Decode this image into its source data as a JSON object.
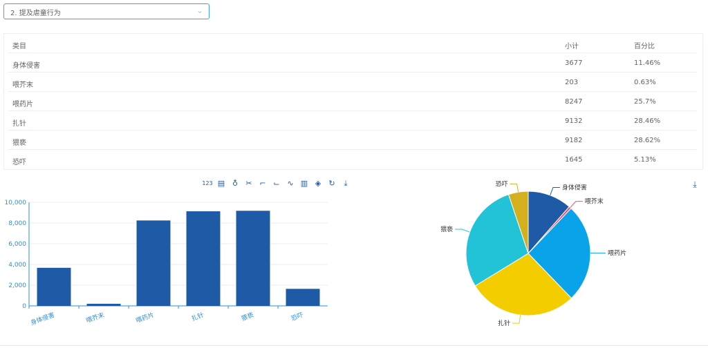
{
  "select": {
    "value": "2. 提及虐童行为",
    "chevron": "⌄"
  },
  "table": {
    "headers": [
      "类目",
      "小计",
      "百分比"
    ],
    "rows": [
      {
        "name": "身体侵害",
        "count": "3677",
        "pct": "11.46%"
      },
      {
        "name": "喂芥末",
        "count": "203",
        "pct": "0.63%"
      },
      {
        "name": "喂药片",
        "count": "8247",
        "pct": "25.7%"
      },
      {
        "name": "扎针",
        "count": "9132",
        "pct": "28.46%"
      },
      {
        "name": "猥亵",
        "count": "9182",
        "pct": "28.62%"
      },
      {
        "name": "恐吓",
        "count": "1645",
        "pct": "5.13%"
      }
    ]
  },
  "toolbar": {
    "tools": [
      {
        "name": "number-icon",
        "glyph": "123"
      },
      {
        "name": "document-icon",
        "glyph": "▤"
      },
      {
        "name": "award-icon",
        "glyph": "♁"
      },
      {
        "name": "scissors-icon",
        "glyph": "✂"
      },
      {
        "name": "crop-icon",
        "glyph": "⌐"
      },
      {
        "name": "crop-alt-icon",
        "glyph": "⌙"
      },
      {
        "name": "line-chart-icon",
        "glyph": "∿"
      },
      {
        "name": "bar-chart-icon",
        "glyph": "▥"
      },
      {
        "name": "stack-icon",
        "glyph": "◈"
      },
      {
        "name": "refresh-icon",
        "glyph": "↻"
      },
      {
        "name": "download-icon",
        "glyph": "⤓"
      }
    ],
    "pie_download_glyph": "⤓"
  },
  "chart_data": [
    {
      "type": "bar",
      "categories": [
        "身体侵害",
        "喂芥末",
        "喂药片",
        "扎针",
        "猥亵",
        "恐吓"
      ],
      "values": [
        3677,
        203,
        8247,
        9132,
        9182,
        1645
      ],
      "ylim": [
        0,
        10000
      ],
      "yticks": [
        "0",
        "2,000",
        "4,000",
        "6,000",
        "8,000",
        "10,000"
      ],
      "color": "#1f5aa6",
      "grid": true
    },
    {
      "type": "pie",
      "labels": [
        "身体侵害",
        "喂芥末",
        "喂药片",
        "扎针",
        "猥亵",
        "恐吓"
      ],
      "values": [
        3677,
        203,
        8247,
        9132,
        9182,
        1645
      ],
      "colors": [
        "#1f5aa6",
        "#e8527b",
        "#08a3e8",
        "#f3cd00",
        "#22c3d6",
        "#d4b01e"
      ]
    }
  ]
}
